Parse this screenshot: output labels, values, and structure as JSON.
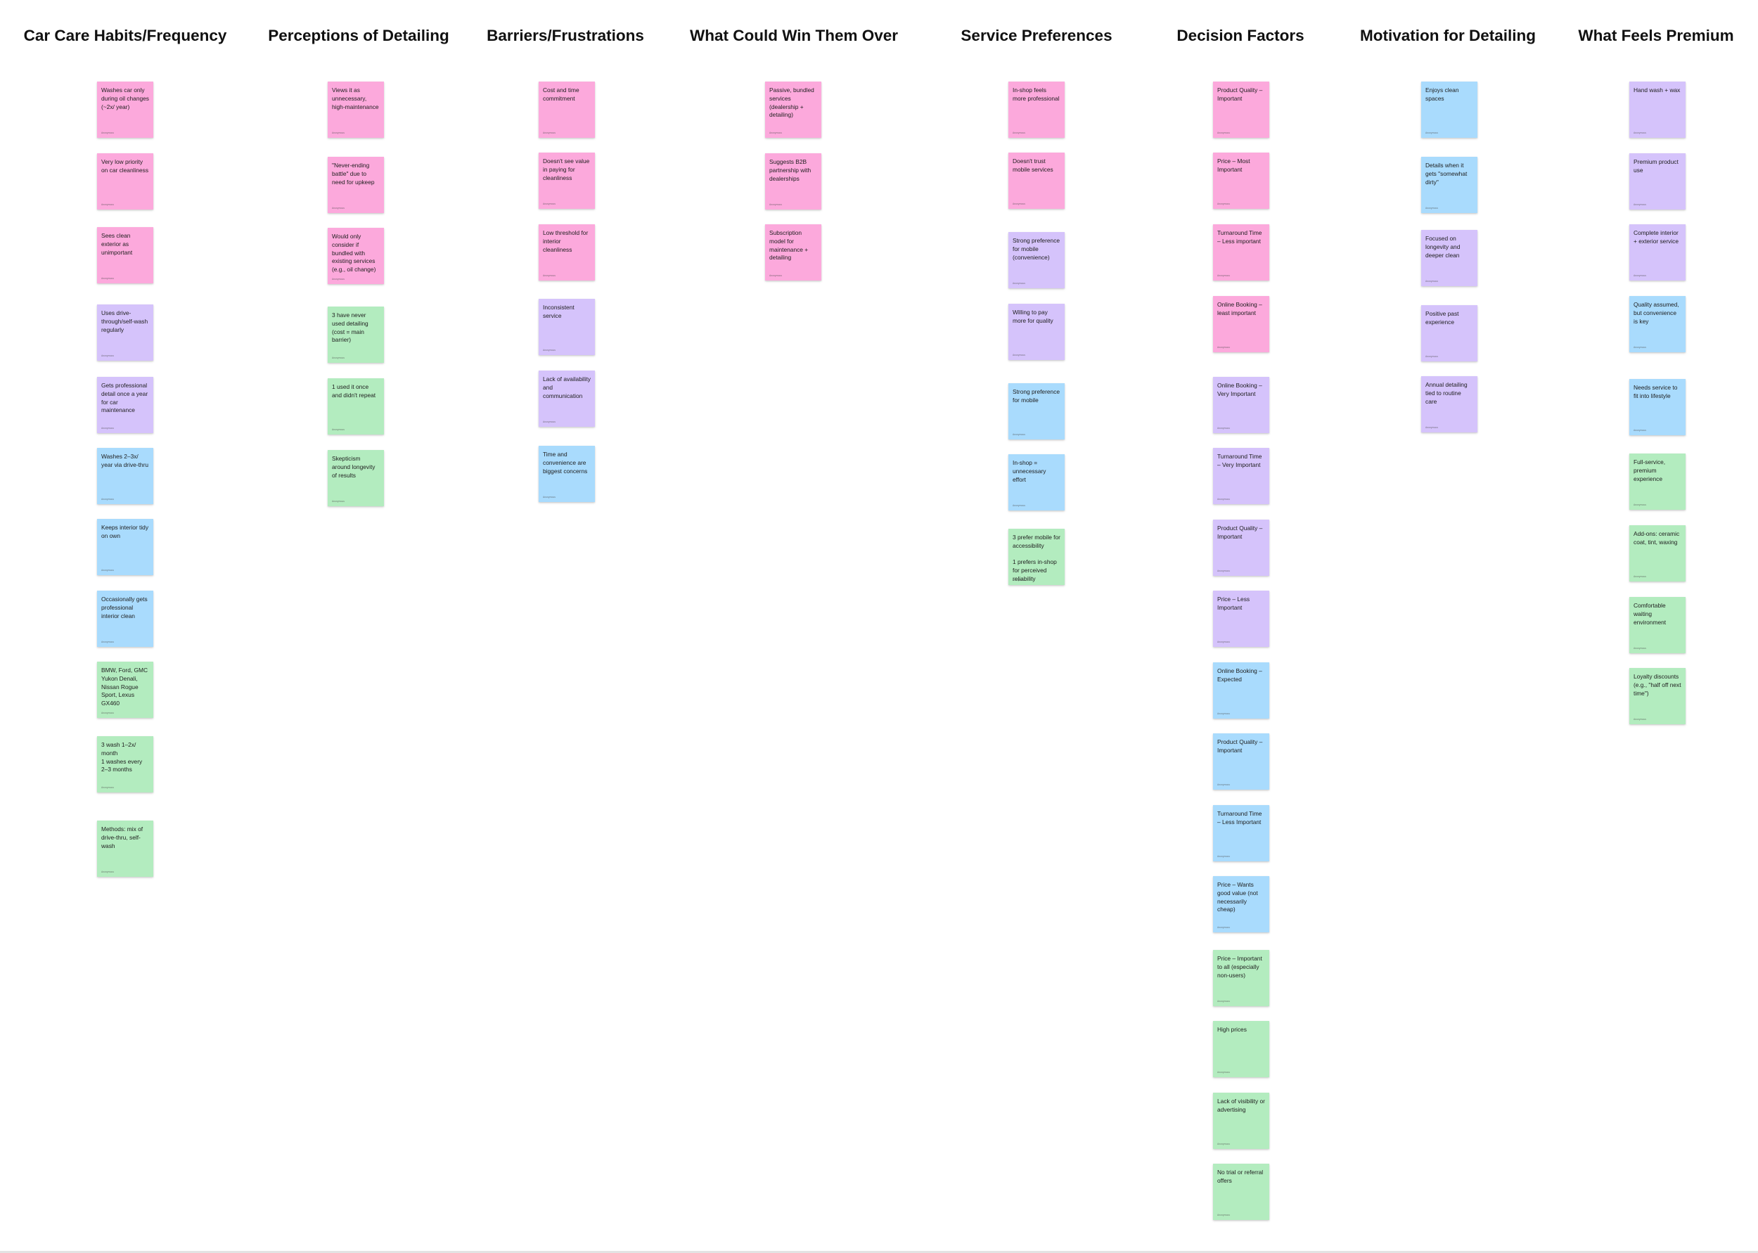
{
  "colors": {
    "pink": "#fca9dc",
    "purple": "#d5c3fb",
    "blue": "#a9dbfd",
    "green": "#b3ecbf",
    "background": "#ffffff"
  },
  "note_author": "Anonymous",
  "columns": [
    {
      "title": "Car Care Habits/Frequency",
      "notes": [
        {
          "text": "Washes car only during oil changes (~2x/ year)",
          "color": "pink"
        },
        {
          "text": "Very low priority on car cleanliness",
          "color": "pink"
        },
        {
          "text": "Sees clean exterior as unimportant",
          "color": "pink"
        },
        {
          "text": "Uses drive-through/self-wash regularly",
          "color": "purple"
        },
        {
          "text": "Gets professional detail once a year for car maintenance",
          "color": "purple"
        },
        {
          "text": "Washes 2–3x/ year via drive-thru",
          "color": "blue"
        },
        {
          "text": "Keeps interior tidy on own",
          "color": "blue"
        },
        {
          "text": "Occasionally gets professional interior clean",
          "color": "blue"
        },
        {
          "text": "BMW, Ford, GMC Yukon Denali, Nissan Rogue Sport, Lexus GX460",
          "color": "green"
        },
        {
          "text": "3 wash 1–2x/ month\n1 washes every 2–3 months",
          "color": "green"
        },
        {
          "text": "Methods: mix of drive-thru, self-wash",
          "color": "green"
        }
      ]
    },
    {
      "title": "Perceptions of Detailing",
      "notes": [
        {
          "text": "Views it as unnecessary, high-maintenance",
          "color": "pink"
        },
        {
          "text": "\"Never-ending battle\" due to need for upkeep",
          "color": "pink"
        },
        {
          "text": "Would only consider if bundled with existing services (e.g., oil change)",
          "color": "pink"
        },
        {
          "text": "3 have never used detailing (cost = main barrier)",
          "color": "green"
        },
        {
          "text": "1 used it once and didn't repeat",
          "color": "green"
        },
        {
          "text": "Skepticism around longevity of results",
          "color": "green"
        }
      ]
    },
    {
      "title": "Barriers/Frustrations",
      "notes": [
        {
          "text": "Cost and time commitment",
          "color": "pink"
        },
        {
          "text": "Doesn't see value in paying for cleanliness",
          "color": "pink"
        },
        {
          "text": "Low threshold for interior cleanliness",
          "color": "pink"
        },
        {
          "text": "Inconsistent service",
          "color": "purple"
        },
        {
          "text": "Lack of availability and communication",
          "color": "purple"
        },
        {
          "text": "Time and convenience are biggest concerns",
          "color": "blue"
        }
      ]
    },
    {
      "title": "What Could Win Them Over",
      "notes": [
        {
          "text": "Passive, bundled services (dealership + detailing)",
          "color": "pink"
        },
        {
          "text": "Suggests B2B partnership with dealerships",
          "color": "pink"
        },
        {
          "text": "Subscription model for maintenance + detailing",
          "color": "pink"
        }
      ]
    },
    {
      "title": "Service Preferences",
      "notes": [
        {
          "text": "In-shop feels more professional",
          "color": "pink"
        },
        {
          "text": "Doesn't trust mobile services",
          "color": "pink"
        },
        {
          "text": "Strong preference for mobile (convenience)",
          "color": "purple"
        },
        {
          "text": "Willing to pay more for quality",
          "color": "purple"
        },
        {
          "text": "Strong preference for mobile",
          "color": "blue"
        },
        {
          "text": "In-shop = unnecessary effort",
          "color": "blue"
        },
        {
          "text": "3 prefer mobile for accessibility\n\n1 prefers in-shop for perceived reliability",
          "color": "green"
        }
      ]
    },
    {
      "title": "Decision Factors",
      "notes": [
        {
          "text": "Product Quality – Important",
          "color": "pink"
        },
        {
          "text": "Price – Most Important",
          "color": "pink"
        },
        {
          "text": "Turnaround Time – Less important",
          "color": "pink"
        },
        {
          "text": "Online Booking – least important",
          "color": "pink"
        },
        {
          "text": "Online Booking – Very Important",
          "color": "purple"
        },
        {
          "text": "Turnaround Time – Very Important",
          "color": "purple"
        },
        {
          "text": "Product Quality – Important",
          "color": "purple"
        },
        {
          "text": "Price – Less Important",
          "color": "purple"
        },
        {
          "text": "Online Booking – Expected",
          "color": "blue"
        },
        {
          "text": "Product Quality – Important",
          "color": "blue"
        },
        {
          "text": "Turnaround Time – Less Important",
          "color": "blue"
        },
        {
          "text": "Price – Wants good value (not necessarily cheap)",
          "color": "blue"
        },
        {
          "text": "Price – Important to all (especially non-users)",
          "color": "green"
        },
        {
          "text": "High prices",
          "color": "green"
        },
        {
          "text": "Lack of visibility or advertising",
          "color": "green"
        },
        {
          "text": "No trial or referral offers",
          "color": "green"
        }
      ]
    },
    {
      "title": "Motivation for Detailing",
      "notes": [
        {
          "text": "Enjoys clean spaces",
          "color": "blue"
        },
        {
          "text": "Details when it gets \"somewhat dirty\"",
          "color": "blue"
        },
        {
          "text": "Focused on longevity and deeper clean",
          "color": "purple"
        },
        {
          "text": "Positive past experience",
          "color": "purple"
        },
        {
          "text": "Annual detailing tied to routine care",
          "color": "purple"
        }
      ]
    },
    {
      "title": "What Feels Premium",
      "notes": [
        {
          "text": "Hand wash + wax",
          "color": "purple"
        },
        {
          "text": "Premium product use",
          "color": "purple"
        },
        {
          "text": "Complete interior + exterior service",
          "color": "purple"
        },
        {
          "text": "Quality assumed, but convenience is key",
          "color": "blue"
        },
        {
          "text": "Needs service to fit into lifestyle",
          "color": "blue"
        },
        {
          "text": "Full-service, premium experience",
          "color": "green"
        },
        {
          "text": "Add-ons: ceramic coat, tint, waxing",
          "color": "green"
        },
        {
          "text": "Comfortable waiting environment",
          "color": "green"
        },
        {
          "text": "Loyalty discounts (e.g., \"half off next time\")",
          "color": "green"
        }
      ]
    }
  ]
}
